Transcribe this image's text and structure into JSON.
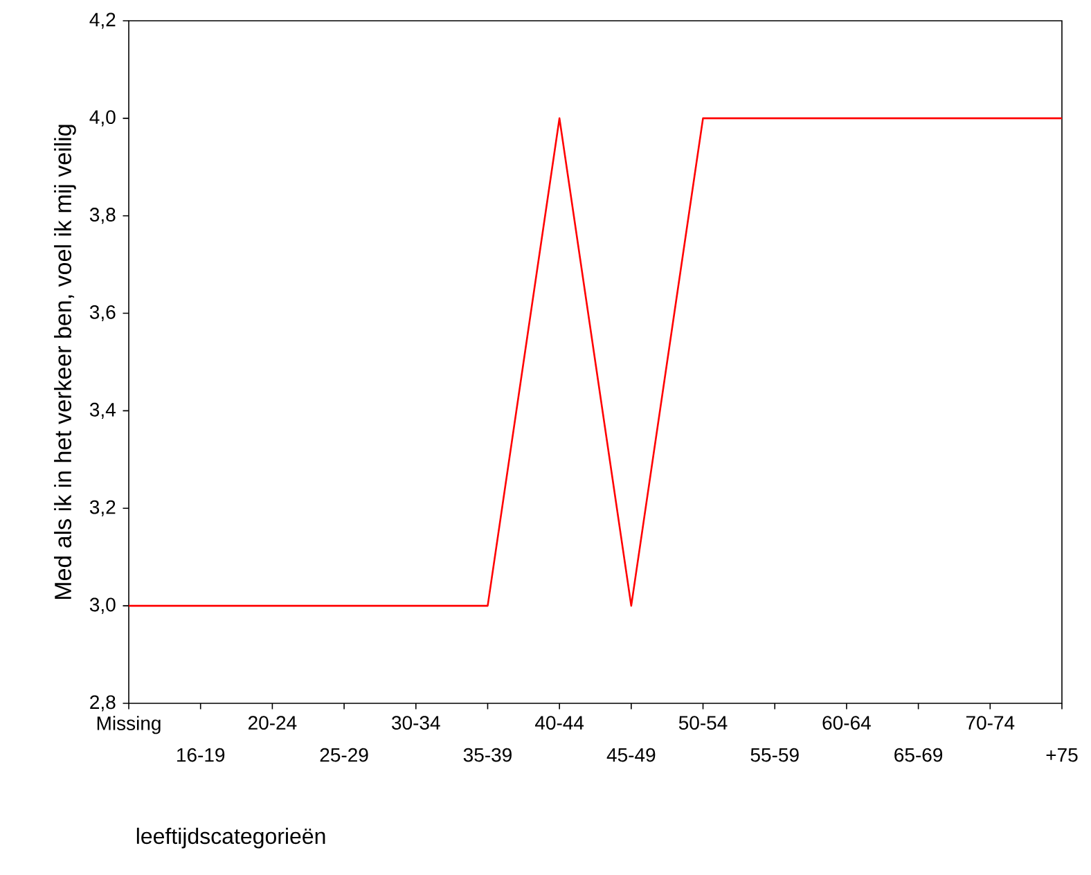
{
  "chart_data": {
    "type": "line",
    "xlabel": "leeftijdscategorieën",
    "ylabel": "Med als ik in het verkeer ben, voel ik mij veilig",
    "categories": [
      "Missing",
      "16-19",
      "20-24",
      "25-29",
      "30-34",
      "35-39",
      "40-44",
      "45-49",
      "50-54",
      "55-59",
      "60-64",
      "65-69",
      "70-74",
      "+75"
    ],
    "series": [
      {
        "color": "#ff0000",
        "values": [
          3.0,
          3.0,
          3.0,
          3.0,
          3.0,
          3.0,
          4.0,
          3.0,
          4.0,
          4.0,
          4.0,
          4.0,
          4.0,
          4.0
        ]
      }
    ],
    "ylim": [
      2.8,
      4.2
    ],
    "yticks": [
      {
        "value": 2.8,
        "label": "2,8"
      },
      {
        "value": 3.0,
        "label": "3,0"
      },
      {
        "value": 3.2,
        "label": "3,2"
      },
      {
        "value": 3.4,
        "label": "3,4"
      },
      {
        "value": 3.6,
        "label": "3,6"
      },
      {
        "value": 3.8,
        "label": "3,8"
      },
      {
        "value": 4.0,
        "label": "4,0"
      },
      {
        "value": 4.2,
        "label": "4,2"
      }
    ],
    "grid": false,
    "marker": "none",
    "line_style": "solid"
  }
}
